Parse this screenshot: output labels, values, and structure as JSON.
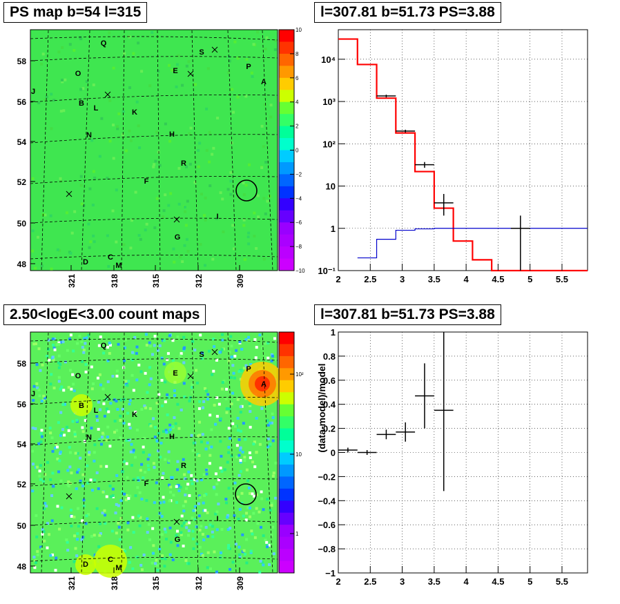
{
  "panels": {
    "ps_map": {
      "title": "PS map b=54 l=315",
      "colorbar_ticks": [
        "10",
        "8",
        "6",
        "4",
        "2",
        "0",
        "−2",
        "−4",
        "−6",
        "−8",
        "−10"
      ],
      "y_ticks": [
        "58",
        "56",
        "54",
        "52",
        "50",
        "48"
      ],
      "x_ticks": [
        "321",
        "318",
        "315",
        "312",
        "309"
      ],
      "source_labels": [
        "Q",
        "S",
        "O",
        "E",
        "P",
        "A",
        "J",
        "B",
        "L",
        "K",
        "N",
        "H",
        "R",
        "F",
        "I",
        "G",
        "D",
        "C",
        "M"
      ]
    },
    "count_map": {
      "title": "2.50<logE<3.00 count maps",
      "colorbar_ticks": [
        "10²",
        "10",
        "1"
      ],
      "y_ticks": [
        "58",
        "56",
        "54",
        "52",
        "50",
        "48"
      ],
      "x_ticks": [
        "321",
        "318",
        "315",
        "312",
        "309"
      ],
      "source_labels": [
        "Q",
        "S",
        "O",
        "E",
        "P",
        "A",
        "J",
        "B",
        "L",
        "K",
        "N",
        "H",
        "R",
        "F",
        "I",
        "G",
        "D",
        "C",
        "M"
      ]
    },
    "spectrum": {
      "title": "l=307.81 b=51.73 PS=3.88",
      "y_ticks": [
        "10⁴",
        "10³",
        "10²",
        "10",
        "1",
        "10⁻¹"
      ],
      "x_ticks": [
        "2",
        "2.5",
        "3",
        "3.5",
        "4",
        "4.5",
        "5",
        "5.5"
      ]
    },
    "residual": {
      "title": "l=307.81 b=51.73 PS=3.88",
      "ylabel": "(data-model)/model",
      "y_ticks": [
        "1",
        "0.8",
        "0.6",
        "0.4",
        "0.2",
        "0",
        "−0.2",
        "−0.4",
        "−0.6",
        "−0.8",
        "−1"
      ],
      "x_ticks": [
        "2",
        "2.5",
        "3",
        "3.5",
        "4",
        "4.5",
        "5",
        "5.5"
      ]
    }
  },
  "colors": {
    "model": "#ff0000",
    "data": "#000000",
    "background_model": "#0000cc"
  },
  "chart_data": [
    {
      "type": "heatmap",
      "title": "PS map b=54 l=315",
      "x_ticks": [
        321,
        318,
        315,
        312,
        309
      ],
      "y_ticks": [
        58,
        56,
        54,
        52,
        50,
        48
      ],
      "colorbar_range": [
        -10,
        10
      ],
      "colormap": "rainbow"
    },
    {
      "type": "heatmap",
      "title": "2.50<logE<3.00 count maps",
      "x_ticks": [
        321,
        318,
        315,
        312,
        309
      ],
      "y_ticks": [
        58,
        56,
        54,
        52,
        50,
        48
      ],
      "colorbar_scale": "log",
      "colormap": "rainbow"
    },
    {
      "type": "line",
      "title": "l=307.81 b=51.73 PS=3.88",
      "xlim": [
        2,
        5.9
      ],
      "ylim": [
        0.1,
        50000
      ],
      "yscale": "log",
      "grid": true,
      "series": [
        {
          "edges": [
            2,
            2.3,
            2.6,
            2.9,
            3.2,
            3.5,
            3.8,
            4.1,
            4.4,
            5.9
          ],
          "values": [
            30000,
            7500,
            1200,
            180,
            22,
            3,
            0.5,
            0.18,
            0.1
          ]
        },
        {
          "edges": [
            2.3,
            2.6,
            2.9,
            3.2,
            3.5,
            3.8,
            5.9
          ],
          "values": [
            0.2,
            0.55,
            0.9,
            0.97,
            1.0,
            1.0,
            1.0
          ]
        }
      ],
      "points": [
        {
          "x": 2.75,
          "y": 1350,
          "xerr": 0.15,
          "ylo": 1250,
          "yhi": 1450
        },
        {
          "x": 3.05,
          "y": 200,
          "xerr": 0.15,
          "ylo": 185,
          "yhi": 215
        },
        {
          "x": 3.35,
          "y": 32,
          "xerr": 0.15,
          "ylo": 27,
          "yhi": 37
        },
        {
          "x": 3.65,
          "y": 4.0,
          "xerr": 0.15,
          "ylo": 2.0,
          "yhi": 6.5
        },
        {
          "x": 4.85,
          "y": 1.0,
          "xerr": 0.15,
          "ylo": 0.1,
          "yhi": 2.0
        }
      ]
    },
    {
      "type": "scatter",
      "title": "l=307.81 b=51.73 PS=3.88",
      "ylabel": "(data-model)/model",
      "xlim": [
        2,
        5.9
      ],
      "ylim": [
        -1,
        1
      ],
      "grid": true,
      "points": [
        {
          "x": 2.15,
          "y": 0.02,
          "xerr": 0.15,
          "yerr": 0.02
        },
        {
          "x": 2.45,
          "y": 0.0,
          "xerr": 0.15,
          "yerr": 0.02
        },
        {
          "x": 2.75,
          "y": 0.15,
          "xerr": 0.15,
          "yerr": 0.04
        },
        {
          "x": 3.05,
          "y": 0.17,
          "xerr": 0.15,
          "yerr": 0.08
        },
        {
          "x": 3.35,
          "y": 0.47,
          "xerr": 0.15,
          "yerr": 0.27
        },
        {
          "x": 3.65,
          "y": 0.35,
          "xerr": 0.15,
          "ylo": -0.32,
          "yhi": 1.0
        }
      ]
    }
  ]
}
